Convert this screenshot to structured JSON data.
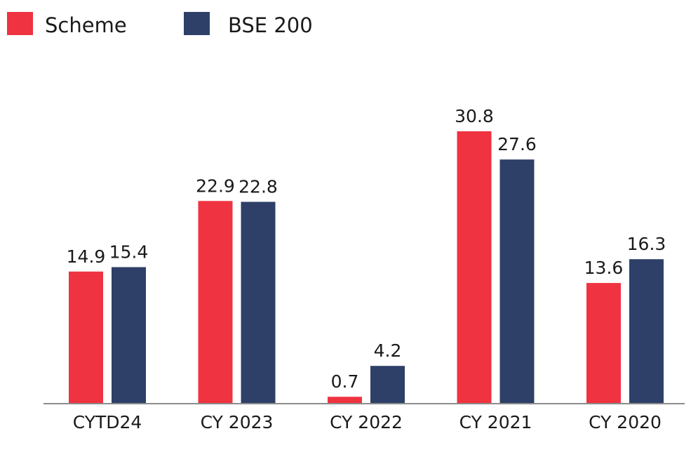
{
  "chart_data": {
    "type": "bar",
    "title": "",
    "xlabel": "",
    "ylabel": "",
    "categories": [
      "CYTD24",
      "CY 2023",
      "CY 2022",
      "CY 2021",
      "CY 2020"
    ],
    "series": [
      {
        "name": "Scheme",
        "color": "#ef3340",
        "values": [
          14.9,
          22.9,
          0.7,
          30.8,
          13.6
        ]
      },
      {
        "name": "BSE 200",
        "color": "#2e4068",
        "values": [
          15.4,
          22.8,
          4.2,
          27.6,
          16.3
        ]
      }
    ],
    "ylim": [
      0,
      30.8
    ],
    "grid": false,
    "legend": "top-left",
    "axis_color": "#8c8c8c",
    "data_labels": true
  }
}
